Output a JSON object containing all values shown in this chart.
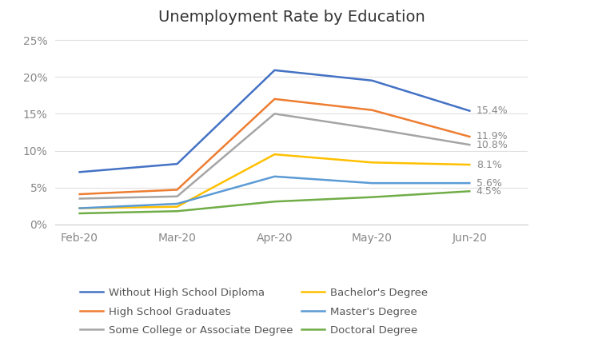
{
  "title": "Unemployment Rate by Education",
  "x_labels": [
    "Feb-20",
    "Mar-20",
    "Apr-20",
    "May-20",
    "Jun-20"
  ],
  "series": [
    {
      "label": "Without High School Diploma",
      "color": "#4472C4",
      "values": [
        0.071,
        0.082,
        0.209,
        0.195,
        0.154
      ],
      "end_label": "15.4%"
    },
    {
      "label": "High School Graduates",
      "color": "#ED7D31",
      "values": [
        0.041,
        0.047,
        0.17,
        0.155,
        0.119
      ],
      "end_label": "11.9%"
    },
    {
      "label": "Some College or Associate Degree",
      "color": "#A5A5A5",
      "values": [
        0.035,
        0.038,
        0.15,
        0.13,
        0.108
      ],
      "end_label": "10.8%"
    },
    {
      "label": "Bachelor's Degree",
      "color": "#FFC000",
      "values": [
        0.022,
        0.024,
        0.095,
        0.084,
        0.081
      ],
      "end_label": "8.1%"
    },
    {
      "label": "Master's Degree",
      "color": "#5B9BD5",
      "values": [
        0.022,
        0.028,
        0.065,
        0.056,
        0.056
      ],
      "end_label": "5.6%"
    },
    {
      "label": "Doctoral Degree",
      "color": "#70AD47",
      "values": [
        0.015,
        0.018,
        0.031,
        0.037,
        0.045
      ],
      "end_label": "4.5%"
    }
  ],
  "ylim": [
    0,
    0.26
  ],
  "yticks": [
    0,
    0.05,
    0.1,
    0.15,
    0.2,
    0.25
  ],
  "background_color": "#FFFFFF",
  "title_fontsize": 14,
  "legend_fontsize": 9.5,
  "tick_fontsize": 10,
  "label_fontsize": 9
}
